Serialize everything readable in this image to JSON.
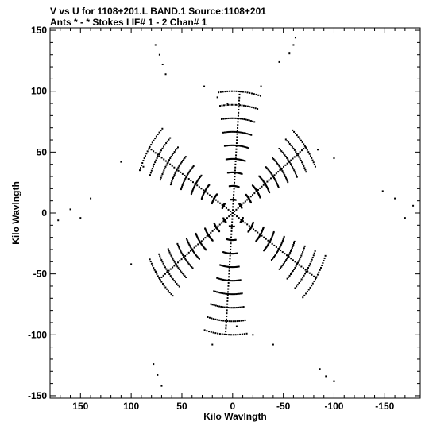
{
  "chart_data": {
    "type": "scatter",
    "title": "V vs U for 1108+201.L BAND.1   Source:1108+201",
    "subtitle": "Ants * - *     Stokes I   IF# 1 - 2   Chan# 1",
    "xlabel": "Kilo Wavlngth",
    "ylabel": "Kilo Wavlngth",
    "xlim": [
      180,
      -185
    ],
    "ylim": [
      -152,
      152
    ],
    "x_reversed": true,
    "x_ticks": [
      150,
      100,
      50,
      0,
      -50,
      -100,
      -150
    ],
    "y_ticks": [
      150,
      100,
      50,
      0,
      -50,
      -100,
      -150
    ],
    "grid": false,
    "marker_color": "#000000",
    "arms": [
      {
        "angle_deg": 94,
        "r_max": 100
      },
      {
        "angle_deg": 143,
        "r_max": 90
      },
      {
        "angle_deg": 33,
        "r_max": 98
      },
      {
        "angle_deg": 274,
        "r_max": 100
      },
      {
        "angle_deg": 323,
        "r_max": 90
      },
      {
        "angle_deg": 213,
        "r_max": 98
      }
    ],
    "tracks_per_arm": 9,
    "points_per_track": 20,
    "track_sweep_deg": 24,
    "points": [
      {
        "u": 76,
        "v": 138
      },
      {
        "u": 72,
        "v": 130
      },
      {
        "u": 69,
        "v": 122
      },
      {
        "u": 66,
        "v": 114
      },
      {
        "u": 28,
        "v": 104
      },
      {
        "u": 15,
        "v": 95
      },
      {
        "u": 5,
        "v": 90
      },
      {
        "u": -28,
        "v": 104
      },
      {
        "u": -46,
        "v": 124
      },
      {
        "u": -56,
        "v": 131
      },
      {
        "u": -60,
        "v": 138
      },
      {
        "u": -62,
        "v": 144
      },
      {
        "u": 160,
        "v": 3
      },
      {
        "u": 150,
        "v": -4
      },
      {
        "u": 172,
        "v": -6
      },
      {
        "u": 140,
        "v": 12
      },
      {
        "u": -148,
        "v": 18
      },
      {
        "u": -160,
        "v": 12
      },
      {
        "u": -178,
        "v": 6
      },
      {
        "u": -170,
        "v": -4
      },
      {
        "u": 70,
        "v": -142
      },
      {
        "u": 74,
        "v": -133
      },
      {
        "u": 78,
        "v": -124
      },
      {
        "u": 20,
        "v": -108
      },
      {
        "u": -4,
        "v": -93
      },
      {
        "u": -20,
        "v": -100
      },
      {
        "u": -40,
        "v": -108
      },
      {
        "u": -86,
        "v": -128
      },
      {
        "u": -92,
        "v": -134
      },
      {
        "u": -100,
        "v": -138
      },
      {
        "u": 76,
        "v": -48
      },
      {
        "u": 100,
        "v": -42
      },
      {
        "u": -84,
        "v": 52
      },
      {
        "u": -100,
        "v": 45
      },
      {
        "u": 110,
        "v": 42
      },
      {
        "u": 88,
        "v": 38
      }
    ]
  }
}
